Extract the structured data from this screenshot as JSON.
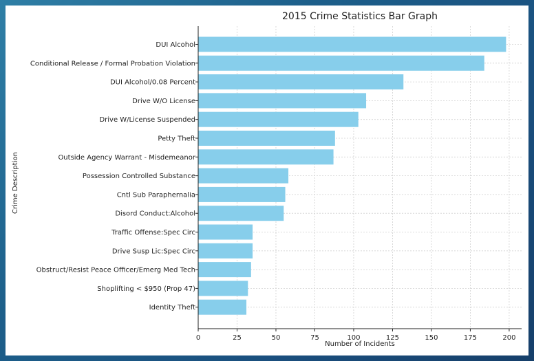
{
  "chart_data": {
    "type": "bar",
    "orientation": "horizontal",
    "title": "2015 Crime Statistics Bar Graph",
    "xlabel": "Number of Incidents",
    "ylabel": "Crime Description",
    "xlim": [
      0,
      208
    ],
    "xticks": [
      0,
      25,
      50,
      75,
      100,
      125,
      150,
      175,
      200
    ],
    "grid": true,
    "bar_color": "#87ceeb",
    "categories": [
      "DUI Alcohol",
      "Conditional Release / Formal Probation Violation",
      "DUI Alcohol/0.08 Percent",
      "Drive W/O License",
      "Drive W/License Suspended",
      "Petty Theft",
      "Outside Agency Warrant - Misdemeanor",
      "Possession Controlled Substance",
      "Cntl Sub Paraphernalia",
      "Disord Conduct:Alcohol",
      "Traffic Offense:Spec Circ",
      "Drive Susp Lic:Spec Circ",
      "Obstruct/Resist Peace Officer/Emerg Med Tech",
      "Shoplifting < $950 (Prop 47)",
      "Identity Theft"
    ],
    "values": [
      198,
      184,
      132,
      108,
      103,
      88,
      87,
      58,
      56,
      55,
      35,
      35,
      34,
      32,
      31
    ]
  }
}
